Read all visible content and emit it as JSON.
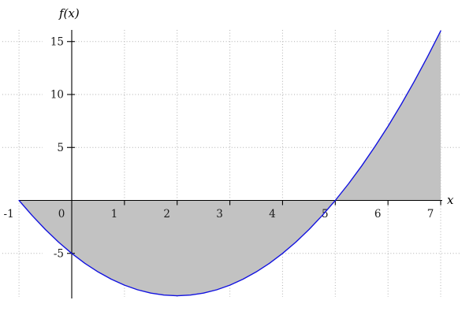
{
  "chart_data": {
    "type": "area",
    "title": "",
    "xlabel": "x",
    "ylabel": "f(x)",
    "x_ticks": [
      -1,
      0,
      1,
      2,
      3,
      4,
      5,
      6,
      7
    ],
    "y_ticks": [
      -5,
      5,
      10,
      15
    ],
    "xlim": [
      -1,
      7.4
    ],
    "ylim": [
      -9.4,
      16.4
    ],
    "grid": "dotted",
    "grid_color": "#b0b0b0",
    "axis_color": "#000000",
    "legend": false,
    "series": [
      {
        "name": "f(x)",
        "type": "line",
        "color": "#1212e0",
        "points": [
          [
            -1,
            0
          ],
          [
            -0.75,
            -1.4375
          ],
          [
            -0.5,
            -2.75
          ],
          [
            -0.25,
            -3.9375
          ],
          [
            0,
            -5
          ],
          [
            0.25,
            -5.9375
          ],
          [
            0.5,
            -6.75
          ],
          [
            0.75,
            -7.4375
          ],
          [
            1,
            -8
          ],
          [
            1.25,
            -8.4375
          ],
          [
            1.5,
            -8.75
          ],
          [
            1.75,
            -8.9375
          ],
          [
            2,
            -9
          ],
          [
            2.25,
            -8.9375
          ],
          [
            2.5,
            -8.75
          ],
          [
            2.75,
            -8.4375
          ],
          [
            3,
            -8
          ],
          [
            3.25,
            -7.4375
          ],
          [
            3.5,
            -6.75
          ],
          [
            3.75,
            -5.9375
          ],
          [
            4,
            -5
          ],
          [
            4.25,
            -3.9375
          ],
          [
            4.5,
            -2.75
          ],
          [
            4.75,
            -1.4375
          ],
          [
            5,
            0
          ],
          [
            5.25,
            1.5625
          ],
          [
            5.5,
            3.25
          ],
          [
            5.75,
            5.0625
          ],
          [
            6,
            7
          ],
          [
            6.25,
            9.0625
          ],
          [
            6.5,
            11.25
          ],
          [
            6.75,
            13.5625
          ],
          [
            7,
            16
          ]
        ]
      }
    ],
    "shaded_region": {
      "fill_color": "#c2c2c2",
      "baseline": 0,
      "x_from": -1,
      "x_to": 7,
      "x_intercepts": [
        -1,
        5
      ]
    }
  }
}
